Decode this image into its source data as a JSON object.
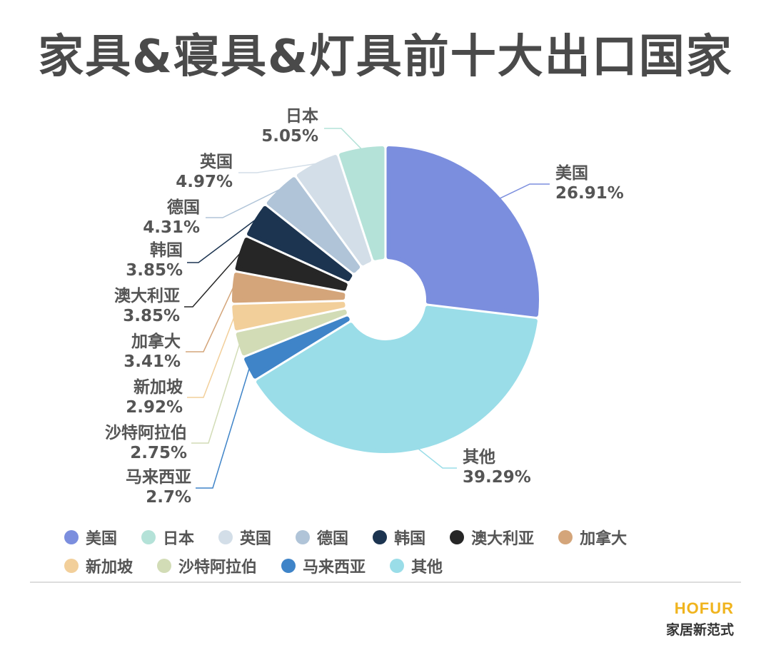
{
  "title": "家具&寝具&灯具前十大出口国家",
  "chart_data": {
    "type": "pie",
    "subtype": "donut",
    "title": "家具&寝具&灯具前十大出口国家",
    "unit": "%",
    "categories": [
      "美国",
      "日本",
      "英国",
      "德国",
      "韩国",
      "澳大利亚",
      "加拿大",
      "新加坡",
      "沙特阿拉伯",
      "马来西亚",
      "其他"
    ],
    "values": [
      26.91,
      5.05,
      4.97,
      4.31,
      3.85,
      3.85,
      3.41,
      2.92,
      2.75,
      2.7,
      39.29
    ],
    "labels": [
      "26.91%",
      "5.05%",
      "4.97%",
      "4.31%",
      "3.85%",
      "3.85%",
      "3.41%",
      "2.92%",
      "2.75%",
      "2.7%",
      "39.29%"
    ],
    "colors": [
      "#7b8ede",
      "#b4e2d8",
      "#d3dee8",
      "#b0c4d8",
      "#1c3450",
      "#262626",
      "#d4a57a",
      "#f2cf9a",
      "#d2dcb6",
      "#3f84c8",
      "#9adde8"
    ],
    "legend_position": "bottom"
  },
  "legend": [
    {
      "label": "美国",
      "color": "#7b8ede"
    },
    {
      "label": "日本",
      "color": "#b4e2d8"
    },
    {
      "label": "英国",
      "color": "#d3dee8"
    },
    {
      "label": "德国",
      "color": "#b0c4d8"
    },
    {
      "label": "韩国",
      "color": "#1c3450"
    },
    {
      "label": "澳大利亚",
      "color": "#262626"
    },
    {
      "label": "加拿大",
      "color": "#d4a57a"
    },
    {
      "label": "新加坡",
      "color": "#f2cf9a"
    },
    {
      "label": "沙特阿拉伯",
      "color": "#d2dcb6"
    },
    {
      "label": "马来西亚",
      "color": "#3f84c8"
    },
    {
      "label": "其他",
      "color": "#9adde8"
    }
  ],
  "brand": {
    "name_en": "HOFUR",
    "name_cn": "家居新范式"
  }
}
